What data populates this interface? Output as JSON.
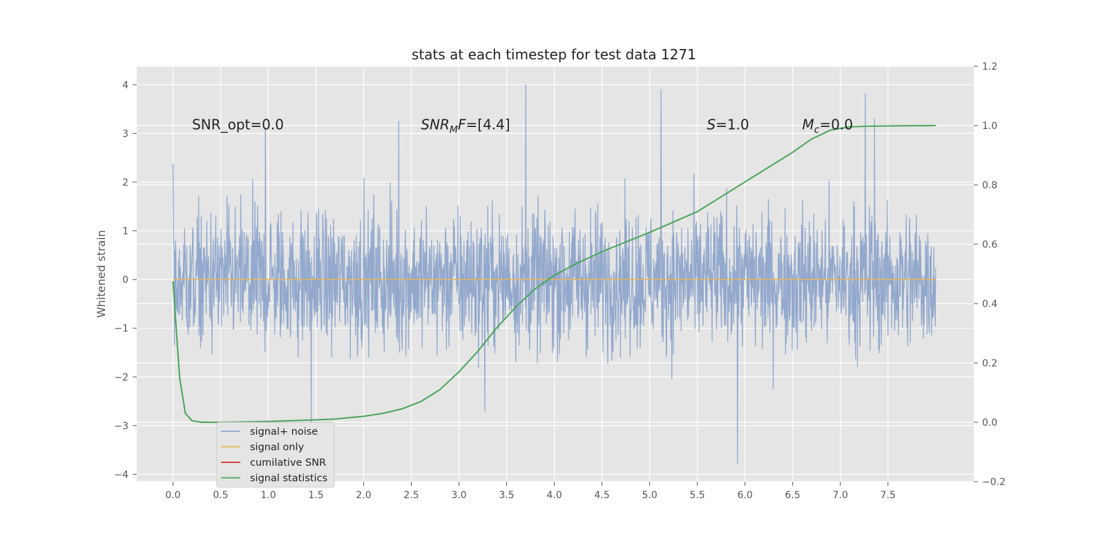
{
  "chart_data": {
    "type": "line",
    "title": "stats at each timestep for test data 1271",
    "ylabel": "Whitened strain",
    "xlabel": "",
    "xlim": [
      -0.38,
      8.4
    ],
    "ylim": [
      -4.15,
      4.38
    ],
    "y2lim": [
      -0.2,
      1.2
    ],
    "grid": true,
    "legend_placement": "lower-left",
    "x_ticks": [
      "0.0",
      "0.5",
      "1.0",
      "1.5",
      "2.0",
      "2.5",
      "3.0",
      "3.5",
      "4.0",
      "4.5",
      "5.0",
      "5.5",
      "6.0",
      "6.5",
      "7.0",
      "7.5"
    ],
    "y_ticks": [
      "4",
      "3",
      "2",
      "1",
      "0",
      "−1",
      "−2",
      "−3",
      "−4"
    ],
    "y2_ticks": [
      "1.2",
      "1.0",
      "0.8",
      "0.6",
      "0.4",
      "0.2",
      "0.0",
      "−0.2"
    ],
    "annotations": [
      {
        "text": "SNR_opt=0.0",
        "x": 0.2,
        "y": 3.18
      },
      {
        "text": "SNR",
        "sub": "M",
        "after": "F=[4.4]",
        "italic": true,
        "x": 2.6,
        "y": 3.18
      },
      {
        "text": "S",
        "after": "=1.0",
        "italic": true,
        "x": 5.6,
        "y": 3.18
      },
      {
        "text": "M",
        "sub": "c",
        "after": "=0.0",
        "italic": true,
        "x": 6.6,
        "y": 3.18
      }
    ],
    "legend": [
      {
        "label": "signal+ noise",
        "color": "#92a8cd"
      },
      {
        "label": "signal only",
        "color": "#e9b65a"
      },
      {
        "label": "cumilative SNR",
        "color": "#d62728"
      },
      {
        "label": "signal statistics",
        "color": "#4aa35c"
      }
    ],
    "series": [
      {
        "name": "signal+ noise",
        "color": "#92a8cd",
        "x_range": [
          0.0,
          8.0
        ],
        "n_samples": 2048,
        "envelope_upper_typical": 1.5,
        "envelope_lower_typical": -1.5,
        "peaks": [
          {
            "x": 0.0,
            "y": 2.38
          },
          {
            "x": 0.97,
            "y": 3.12
          },
          {
            "x": 2.37,
            "y": 3.25
          },
          {
            "x": 3.7,
            "y": 4.0
          },
          {
            "x": 5.12,
            "y": 3.9
          },
          {
            "x": 7.26,
            "y": 3.82
          },
          {
            "x": 7.36,
            "y": 3.3
          },
          {
            "x": 5.92,
            "y": -3.78
          },
          {
            "x": 1.45,
            "y": -3.0
          },
          {
            "x": 3.27,
            "y": -2.7
          }
        ]
      },
      {
        "name": "signal only",
        "color": "#e9b65a",
        "x": [
          0.0,
          8.0
        ],
        "y": [
          0.0,
          0.0
        ]
      },
      {
        "name": "signal statistics",
        "color": "#4aa35c",
        "axis": "right",
        "x": [
          0.0,
          0.07,
          0.13,
          0.2,
          0.3,
          0.5,
          1.0,
          1.5,
          1.7,
          2.0,
          2.2,
          2.4,
          2.6,
          2.8,
          3.0,
          3.2,
          3.4,
          3.6,
          3.8,
          4.0,
          4.2,
          4.5,
          5.0,
          5.5,
          6.0,
          6.3,
          6.5,
          6.7,
          6.9,
          7.1,
          7.3,
          7.6,
          8.0
        ],
        "y": [
          0.475,
          0.15,
          0.03,
          0.005,
          0.0,
          0.0,
          0.003,
          0.008,
          0.011,
          0.02,
          0.03,
          0.045,
          0.07,
          0.11,
          0.17,
          0.24,
          0.32,
          0.39,
          0.45,
          0.495,
          0.53,
          0.575,
          0.64,
          0.71,
          0.81,
          0.87,
          0.91,
          0.955,
          0.985,
          0.996,
          0.998,
          0.999,
          1.0
        ]
      }
    ]
  }
}
